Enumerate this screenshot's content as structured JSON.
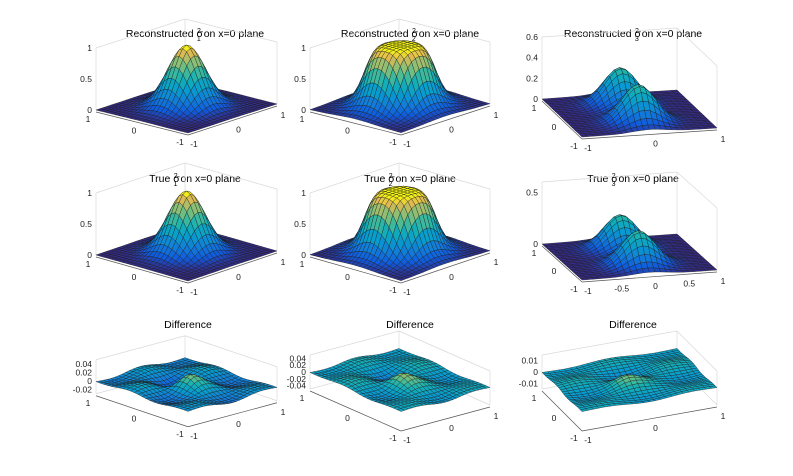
{
  "figure": {
    "panels": [
      {
        "title_pre": "Reconstructed σ",
        "title_sub": "1",
        "title_sup": "2",
        "title_post": " on x=0 plane"
      },
      {
        "title_pre": "Reconstructed σ",
        "title_sub": "2",
        "title_sup": "2",
        "title_post": " on x=0 plane"
      },
      {
        "title_pre": "Reconstructed σ",
        "title_sub": "3",
        "title_sup": "2",
        "title_post": " on x=0 plane"
      },
      {
        "title_pre": "True σ",
        "title_sub": "1",
        "title_sup": "2",
        "title_post": " on x=0 plane"
      },
      {
        "title_pre": "True σ",
        "title_sub": "2",
        "title_sup": "2",
        "title_post": " on x=0 plane"
      },
      {
        "title_pre": "True σ",
        "title_sub": "3",
        "title_sup": "2",
        "title_post": " on x=0 plane"
      },
      {
        "title_pre": "Difference",
        "title_sub": "",
        "title_sup": "",
        "title_post": ""
      },
      {
        "title_pre": "Difference",
        "title_sub": "",
        "title_sup": "",
        "title_post": ""
      },
      {
        "title_pre": "Difference",
        "title_sub": "",
        "title_sup": "",
        "title_post": ""
      }
    ]
  },
  "chart_data": [
    {
      "type": "surface",
      "title": "Reconstructed σ_1^2 on x=0 plane",
      "shape": "gaussian-peak",
      "peak": 1.0,
      "x_ticks": [
        "-1",
        "0",
        "1"
      ],
      "y_ticks": [
        "-1",
        "0",
        "1"
      ],
      "z_ticks": [
        "0",
        "0.5",
        "1"
      ],
      "zlim": [
        0,
        1
      ]
    },
    {
      "type": "surface",
      "title": "Reconstructed σ_2^2 on x=0 plane",
      "shape": "flat-top-plateau",
      "peak": 1.0,
      "x_ticks": [
        "-1",
        "0",
        "1"
      ],
      "y_ticks": [
        "-1",
        "0",
        "1"
      ],
      "z_ticks": [
        "0",
        "0.5",
        "1"
      ],
      "zlim": [
        0,
        1
      ]
    },
    {
      "type": "surface",
      "title": "Reconstructed σ_3^2 on x=0 plane",
      "shape": "two-peaks",
      "peak": 0.6,
      "x_ticks": [
        "-1",
        "0",
        "1"
      ],
      "y_ticks": [
        "-1",
        "0",
        "1"
      ],
      "z_ticks": [
        "0",
        "0.2",
        "0.4",
        "0.6"
      ],
      "zlim": [
        0,
        0.6
      ]
    },
    {
      "type": "surface",
      "title": "True σ_1^2 on x=0 plane",
      "shape": "gaussian-peak",
      "peak": 1.0,
      "x_ticks": [
        "-1",
        "0",
        "1"
      ],
      "y_ticks": [
        "-1",
        "0",
        "1"
      ],
      "z_ticks": [
        "0",
        "0.5",
        "1"
      ],
      "zlim": [
        0,
        1
      ]
    },
    {
      "type": "surface",
      "title": "True σ_2^2 on x=0 plane",
      "shape": "flat-top-plateau",
      "peak": 1.0,
      "x_ticks": [
        "-1",
        "0",
        "1"
      ],
      "y_ticks": [
        "-1",
        "0",
        "1"
      ],
      "z_ticks": [
        "0",
        "0.5",
        "1"
      ],
      "zlim": [
        0,
        1
      ]
    },
    {
      "type": "surface",
      "title": "True σ_3^2 on x=0 plane",
      "shape": "two-peaks",
      "peak": 0.55,
      "x_ticks": [
        "-1",
        "-0.5",
        "0",
        "0.5",
        "1"
      ],
      "y_ticks": [
        "-1",
        "0",
        "1"
      ],
      "z_ticks": [
        "0",
        "0.5"
      ],
      "zlim": [
        0,
        0.6
      ]
    },
    {
      "type": "surface",
      "title": "Difference",
      "shape": "oscillating",
      "peak": 0.04,
      "x_ticks": [
        "-1",
        "0",
        "1"
      ],
      "y_ticks": [
        "-1",
        "0",
        "1"
      ],
      "z_ticks": [
        "-0.02",
        "0",
        "0.02",
        "0.04"
      ],
      "zlim": [
        -0.03,
        0.05
      ]
    },
    {
      "type": "surface",
      "title": "Difference",
      "shape": "oscillating",
      "peak": 0.04,
      "x_ticks": [
        "-1",
        "0",
        "1"
      ],
      "y_ticks": [
        "-1",
        "0",
        "1"
      ],
      "z_ticks": [
        "-0.04",
        "-0.02",
        "0",
        "0.02",
        "0.04"
      ],
      "zlim": [
        -0.05,
        0.05
      ]
    },
    {
      "type": "surface",
      "title": "Difference",
      "shape": "oscillating",
      "peak": 0.01,
      "x_ticks": [
        "-1",
        "0",
        "1"
      ],
      "y_ticks": [
        "-1",
        "0",
        "1"
      ],
      "z_ticks": [
        "-0.01",
        "0",
        "0.01"
      ],
      "zlim": [
        -0.015,
        0.015
      ]
    }
  ]
}
